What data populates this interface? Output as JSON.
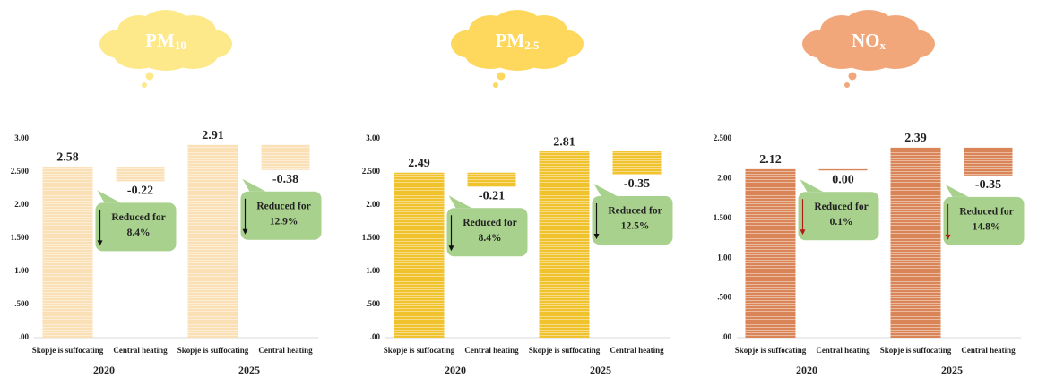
{
  "chart_data": [
    {
      "type": "waterfall",
      "title": {
        "main": "PM",
        "sub": "10"
      },
      "title_color": "#fde88a",
      "color": "#fbdfb5",
      "arrow_color": "#111",
      "ylim": [
        0,
        3
      ],
      "yticks": [
        {
          "value": 3,
          "label": "3.00"
        },
        {
          "value": 2.5,
          "label": "2.500"
        },
        {
          "value": 2,
          "label": "2.00"
        },
        {
          "value": 1.5,
          "label": "1.500"
        },
        {
          "value": 1,
          "label": "1.00"
        },
        {
          "value": 0.5,
          "label": ".500"
        },
        {
          "value": 0,
          "label": ".00"
        }
      ],
      "groups": [
        {
          "label": "2020",
          "categories": [
            "Skopje is suffocating",
            "Central heating"
          ],
          "values": [
            2.58,
            -0.22
          ],
          "value_labels": [
            "2.58",
            "-0.22"
          ],
          "callout": [
            "Reduced for",
            "8.4%"
          ]
        },
        {
          "label": "2025",
          "categories": [
            "Skopje is suffocating",
            "Central heating"
          ],
          "values": [
            2.91,
            -0.38
          ],
          "value_labels": [
            "2.91",
            "-0.38"
          ],
          "callout": [
            "Reduced for",
            "12.9%"
          ]
        }
      ]
    },
    {
      "type": "waterfall",
      "title": {
        "main": "PM",
        "sub": "2.5"
      },
      "title_color": "#fdd85c",
      "color": "#f0c22c",
      "arrow_color": "#111",
      "ylim": [
        0,
        3
      ],
      "yticks": [
        {
          "value": 3,
          "label": "3.00"
        },
        {
          "value": 2.5,
          "label": "2.500"
        },
        {
          "value": 2,
          "label": "2.00"
        },
        {
          "value": 1.5,
          "label": "1.500"
        },
        {
          "value": 1,
          "label": "1.00"
        },
        {
          "value": 0.5,
          "label": ".500"
        },
        {
          "value": 0,
          "label": ".00"
        }
      ],
      "groups": [
        {
          "label": "2020",
          "categories": [
            "Skopje is suffocating",
            "Central heating"
          ],
          "values": [
            2.49,
            -0.21
          ],
          "value_labels": [
            "2.49",
            "-0.21"
          ],
          "callout": [
            "Reduced for",
            "8.4%"
          ]
        },
        {
          "label": "2025",
          "categories": [
            "Skopje is suffocating",
            "Central heating"
          ],
          "values": [
            2.81,
            -0.35
          ],
          "value_labels": [
            "2.81",
            "-0.35"
          ],
          "callout": [
            "Reduced for",
            "12.5%"
          ]
        }
      ]
    },
    {
      "type": "waterfall",
      "title": {
        "main": "NO",
        "sub": "x"
      },
      "title_color": "#f2a77a",
      "color": "#d98558",
      "arrow_color": "#b31b1b",
      "ylim": [
        0,
        2.5
      ],
      "yticks": [
        {
          "value": 2.5,
          "label": "2.500"
        },
        {
          "value": 2,
          "label": "2.00"
        },
        {
          "value": 1.5,
          "label": "1.500"
        },
        {
          "value": 1,
          "label": "1.00"
        },
        {
          "value": 0.5,
          "label": ".500"
        },
        {
          "value": 0,
          "label": ".00"
        }
      ],
      "groups": [
        {
          "label": "2020",
          "categories": [
            "Skopje is suffocating",
            "Central heating"
          ],
          "values": [
            2.12,
            0
          ],
          "value_labels": [
            "2.12",
            "0.00"
          ],
          "callout": [
            "Reduced for",
            "0.1%"
          ]
        },
        {
          "label": "2025",
          "categories": [
            "Skopje is suffocating",
            "Central heating"
          ],
          "values": [
            2.39,
            -0.35
          ],
          "value_labels": [
            "2.39",
            "-0.35"
          ],
          "callout": [
            "Reduced for",
            "14.8%"
          ]
        }
      ]
    }
  ]
}
